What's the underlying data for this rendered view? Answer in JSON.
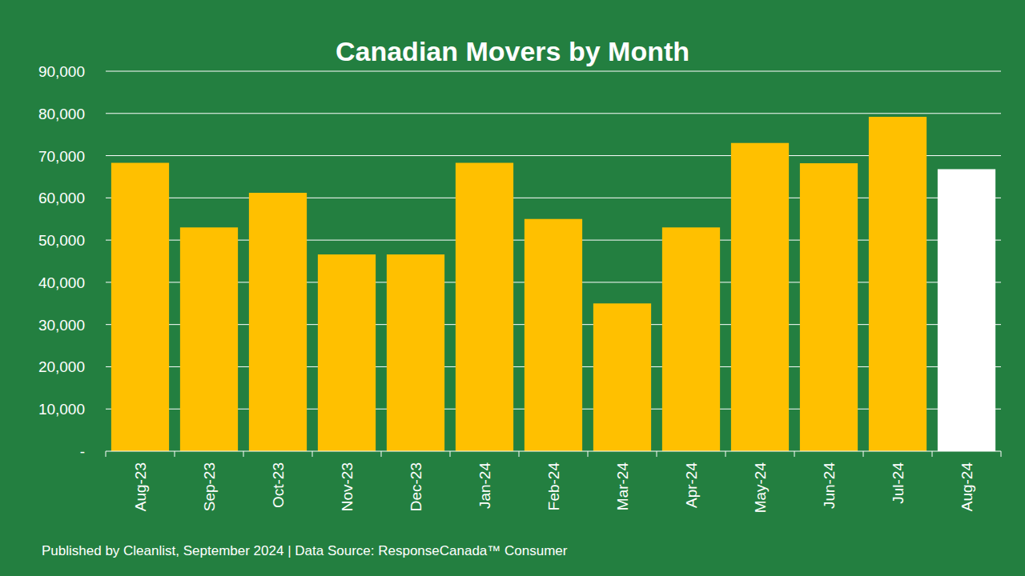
{
  "chart_data": {
    "type": "bar",
    "title": "Canadian Movers by Month",
    "categories": [
      "Aug-23",
      "Sep-23",
      "Oct-23",
      "Nov-23",
      "Dec-23",
      "Jan-24",
      "Feb-24",
      "Mar-24",
      "Apr-24",
      "May-24",
      "Jun-24",
      "Jul-24",
      "Aug-24"
    ],
    "values": [
      68300,
      53000,
      61200,
      46600,
      46600,
      68300,
      55000,
      35000,
      53000,
      73000,
      68200,
      79200,
      66800
    ],
    "colors": [
      "#ffc000",
      "#ffc000",
      "#ffc000",
      "#ffc000",
      "#ffc000",
      "#ffc000",
      "#ffc000",
      "#ffc000",
      "#ffc000",
      "#ffc000",
      "#ffc000",
      "#ffc000",
      "#ffffff"
    ],
    "ylim": [
      0,
      90000
    ],
    "yticks": [
      {
        "value": 0,
        "label": "-"
      },
      {
        "value": 10000,
        "label": "10,000"
      },
      {
        "value": 20000,
        "label": "20,000"
      },
      {
        "value": 30000,
        "label": "30,000"
      },
      {
        "value": 40000,
        "label": "40,000"
      },
      {
        "value": 50000,
        "label": "50,000"
      },
      {
        "value": 60000,
        "label": "60,000"
      },
      {
        "value": 70000,
        "label": "70,000"
      },
      {
        "value": 80000,
        "label": "80,000"
      },
      {
        "value": 90000,
        "label": "90,000"
      }
    ],
    "grid": true,
    "source": "Published by Cleanlist, September 2024 | Data Source: ResponseCanada™ Consumer"
  }
}
